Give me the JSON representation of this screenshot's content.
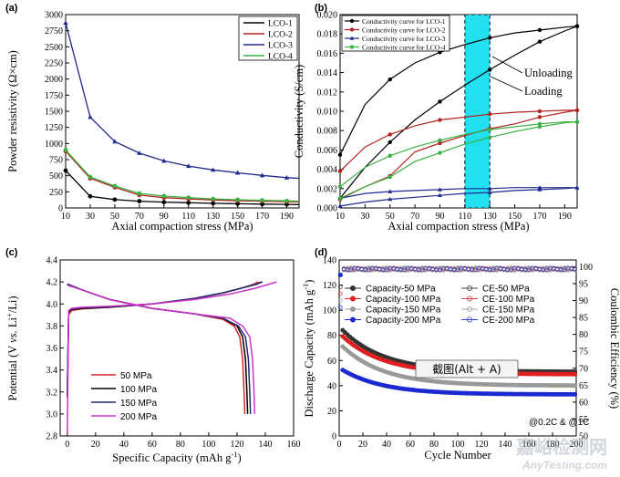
{
  "chart_data": [
    {
      "panel": "(a)",
      "type": "line",
      "xlabel": "Axial compaction stress (MPa)",
      "ylabel": "Powder resistivity (Ω×cm)",
      "xlim": [
        10,
        200
      ],
      "ylim": [
        0,
        3000
      ],
      "xticks": [
        10,
        30,
        50,
        70,
        90,
        110,
        130,
        150,
        170,
        190
      ],
      "yticks": [
        0,
        250,
        500,
        750,
        1000,
        1250,
        1500,
        1750,
        2000,
        2250,
        2500,
        2750,
        3000
      ],
      "x": [
        10,
        30,
        50,
        70,
        90,
        110,
        130,
        150,
        170,
        190,
        200
      ],
      "legend_position": "top-right",
      "series": [
        {
          "name": "LCO-1",
          "color": "#000000",
          "values": [
            580,
            180,
            130,
            105,
            90,
            80,
            72,
            65,
            60,
            55,
            52
          ]
        },
        {
          "name": "LCO-2",
          "color": "#b22222",
          "values": [
            880,
            460,
            320,
            200,
            160,
            140,
            125,
            112,
            105,
            98,
            95
          ]
        },
        {
          "name": "LCO-3",
          "color": "#1f2a8c",
          "values": [
            2870,
            1410,
            1030,
            850,
            730,
            650,
            590,
            545,
            505,
            470,
            460
          ]
        },
        {
          "name": "LCO-4",
          "color": "#3cb043",
          "values": [
            900,
            480,
            340,
            225,
            185,
            160,
            140,
            128,
            118,
            110,
            105
          ]
        }
      ]
    },
    {
      "panel": "(b)",
      "type": "line",
      "xlabel": "Axial compaction stress (MPa)",
      "ylabel": "Conductivity (S/cm)",
      "xlim": [
        10,
        200
      ],
      "ylim": [
        0,
        0.02
      ],
      "xticks": [
        10,
        30,
        50,
        70,
        90,
        110,
        130,
        150,
        170,
        190
      ],
      "xtick_labels": [
        "10",
        "30",
        "50",
        "70",
        "90",
        "110",
        "130",
        "150",
        "170",
        "190"
      ],
      "yticks": [
        0,
        0.002,
        0.004,
        0.006,
        0.008,
        0.01,
        0.012,
        0.014,
        0.016,
        0.018,
        0.02
      ],
      "ytick_labels": [
        "0.000",
        "0.002",
        "0.004",
        "0.006",
        "0.008",
        "0.010",
        "0.012",
        "0.014",
        "0.016",
        "0.018",
        "0.020"
      ],
      "legend_position": "top-left",
      "highlight_band": {
        "x_from": 110,
        "x_to": 130,
        "color": "#22e0f0"
      },
      "annotations": [
        "Unloading",
        "Loading"
      ],
      "series": [
        {
          "name": "Conductivity curve for LCO-1",
          "color": "#000000",
          "loading": {
            "x": [
              10,
              30,
              50,
              70,
              90,
              110,
              130,
              150,
              170,
              190,
              200
            ],
            "y": [
              0.001,
              0.0042,
              0.0068,
              0.0091,
              0.011,
              0.0127,
              0.0143,
              0.0158,
              0.0172,
              0.0183,
              0.0188
            ]
          },
          "unloading": {
            "x": [
              10,
              30,
              50,
              70,
              90,
              110,
              130,
              150,
              170,
              190,
              200
            ],
            "y": [
              0.0055,
              0.0107,
              0.0133,
              0.015,
              0.0161,
              0.0169,
              0.0176,
              0.0181,
              0.0184,
              0.0187,
              0.0188
            ]
          }
        },
        {
          "name": "Conductivity curve for LCO-2",
          "color": "#b22222",
          "loading": {
            "x": [
              10,
              30,
              50,
              70,
              90,
              110,
              130,
              150,
              170,
              190,
              200
            ],
            "y": [
              0.0009,
              0.0022,
              0.0033,
              0.0058,
              0.0067,
              0.0075,
              0.0082,
              0.0087,
              0.0094,
              0.0099,
              0.0101
            ]
          },
          "unloading": {
            "x": [
              10,
              30,
              50,
              70,
              90,
              110,
              130,
              150,
              170,
              190,
              200
            ],
            "y": [
              0.0038,
              0.0063,
              0.0076,
              0.0085,
              0.0091,
              0.0094,
              0.0097,
              0.0099,
              0.01,
              0.0101,
              0.0101
            ]
          }
        },
        {
          "name": "Conductivity curve for LCO-3",
          "color": "#1f2a8c",
          "loading": {
            "x": [
              10,
              30,
              50,
              70,
              90,
              110,
              130,
              150,
              170,
              190,
              200
            ],
            "y": [
              0.0002,
              0.0006,
              0.0009,
              0.0011,
              0.0013,
              0.0015,
              0.0016,
              0.0018,
              0.0019,
              0.002,
              0.0021
            ]
          },
          "unloading": {
            "x": [
              10,
              30,
              50,
              70,
              90,
              110,
              130,
              150,
              170,
              190,
              200
            ],
            "y": [
              0.001,
              0.0015,
              0.0017,
              0.0018,
              0.0019,
              0.002,
              0.002,
              0.0021,
              0.0021,
              0.0021,
              0.0021
            ]
          }
        },
        {
          "name": "Conductivity curve for LCO-4",
          "color": "#3cb043",
          "loading": {
            "x": [
              10,
              30,
              50,
              70,
              90,
              110,
              130,
              150,
              170,
              190,
              200
            ],
            "y": [
              0.001,
              0.0022,
              0.0032,
              0.0048,
              0.0057,
              0.0066,
              0.0073,
              0.0079,
              0.0084,
              0.0088,
              0.0089
            ]
          },
          "unloading": {
            "x": [
              10,
              30,
              50,
              70,
              90,
              110,
              130,
              150,
              170,
              190,
              200
            ],
            "y": [
              0.0022,
              0.0042,
              0.0054,
              0.0063,
              0.007,
              0.0076,
              0.0081,
              0.0084,
              0.0087,
              0.0089,
              0.0089
            ]
          }
        }
      ]
    },
    {
      "panel": "(c)",
      "type": "line",
      "xlabel": "Specific Capacity (mAh g",
      "xlabel_sup": "-1",
      "xlabel_end": ")",
      "ylabel_parts": [
        "Potential (V ",
        "vs.",
        " Li",
        "+",
        "/Li)"
      ],
      "xlim": [
        -5,
        160
      ],
      "ylim": [
        2.8,
        4.4
      ],
      "xticks": [
        0,
        20,
        40,
        60,
        80,
        100,
        120,
        140,
        160
      ],
      "yticks": [
        2.8,
        2.9,
        3.0,
        3.1,
        3.2,
        3.3,
        3.4,
        3.5,
        3.6,
        3.7,
        3.8,
        3.9,
        4.0,
        4.1,
        4.2,
        4.3,
        4.4
      ],
      "legend_position": "bottom-left",
      "series": [
        {
          "name": "50  MPa",
          "color": "#d62728",
          "charge": {
            "x": [
              0,
              1,
              3,
              10,
              30,
              60,
              90,
              110,
              125,
              132,
              135
            ],
            "y": [
              3.15,
              3.9,
              3.94,
              3.955,
              3.97,
              4.0,
              4.05,
              4.1,
              4.15,
              4.18,
              4.2
            ]
          },
          "discharge": {
            "x": [
              0,
              10,
              30,
              60,
              90,
              110,
              118,
              122,
              124,
              125,
              125.5
            ],
            "y": [
              4.18,
              4.13,
              4.04,
              3.96,
              3.91,
              3.86,
              3.8,
              3.7,
              3.5,
              3.2,
              3.0
            ]
          }
        },
        {
          "name": "100 MPa",
          "color": "#000000",
          "charge": {
            "x": [
              0,
              1,
              3,
              10,
              30,
              60,
              90,
              110,
              125,
              134,
              137
            ],
            "y": [
              3.17,
              3.92,
              3.95,
              3.96,
              3.97,
              4.0,
              4.05,
              4.1,
              4.15,
              4.18,
              4.2
            ]
          },
          "discharge": {
            "x": [
              0,
              10,
              30,
              60,
              90,
              110,
              120,
              124,
              126,
              127,
              127.5
            ],
            "y": [
              4.18,
              4.13,
              4.04,
              3.96,
              3.91,
              3.87,
              3.8,
              3.7,
              3.5,
              3.2,
              3.0
            ]
          }
        },
        {
          "name": "150 MPa",
          "color": "#1f2a6c",
          "charge": {
            "x": [
              0,
              1,
              3,
              10,
              30,
              60,
              90,
              110,
              125,
              134,
              138
            ],
            "y": [
              3.18,
              3.93,
              3.955,
              3.965,
              3.975,
              4.0,
              4.05,
              4.1,
              4.15,
              4.18,
              4.2
            ]
          },
          "discharge": {
            "x": [
              0,
              10,
              30,
              60,
              90,
              110,
              121,
              126,
              128,
              129,
              129.5
            ],
            "y": [
              4.18,
              4.13,
              4.04,
              3.96,
              3.91,
              3.87,
              3.8,
              3.7,
              3.5,
              3.2,
              3.0
            ]
          }
        },
        {
          "name": "200 MPa",
          "color": "#cc33cc",
          "charge": {
            "x": [
              0,
              1,
              3,
              10,
              30,
              60,
              90,
              115,
              132,
              143,
              148
            ],
            "y": [
              2.82,
              3.94,
              3.96,
              3.97,
              3.98,
              4.0,
              4.04,
              4.09,
              4.14,
              4.18,
              4.2
            ]
          },
          "discharge": {
            "x": [
              0,
              10,
              30,
              60,
              90,
              115,
              124,
              129,
              131,
              132,
              132.5
            ],
            "y": [
              4.17,
              4.13,
              4.04,
              3.96,
              3.91,
              3.87,
              3.8,
              3.7,
              3.5,
              3.2,
              3.0
            ]
          }
        }
      ]
    },
    {
      "panel": "(d)",
      "type": "scatter",
      "xlabel": "Cycle Number",
      "ylabel": "Discharge Capacity (mAh g",
      "ylabel_sup": "-1",
      "ylabel_end": ")",
      "y2label": "Coulombic Efficiency (%)",
      "xlim": [
        0,
        200
      ],
      "ylim": [
        0,
        140
      ],
      "y2lim": [
        50,
        102
      ],
      "xticks": [
        0,
        20,
        40,
        60,
        80,
        100,
        120,
        140,
        160,
        180,
        200
      ],
      "yticks": [
        0,
        20,
        40,
        60,
        80,
        100,
        120,
        140
      ],
      "y2ticks": [
        50,
        55,
        60,
        65,
        70,
        75,
        80,
        85,
        90,
        95,
        100
      ],
      "legend_position": "center",
      "rate_note": "@0.2C & @1C",
      "capacity_series": [
        {
          "name": "Capacity-50  MPa",
          "color": "#333333",
          "start": 85,
          "end": 51
        },
        {
          "name": "Capacity-100 MPa",
          "color": "#e02020",
          "start": 80,
          "end": 49
        },
        {
          "name": "Capacity-150 MPa",
          "color": "#999999",
          "start": 72,
          "end": 40
        },
        {
          "name": "Capacity-200 MPa",
          "color": "#1a2ad0",
          "start": 53,
          "end": 33
        }
      ],
      "ce_series": [
        {
          "name": "CE-50  MPa",
          "color": "#444444"
        },
        {
          "name": "CE-100 MPa",
          "color": "#d04040"
        },
        {
          "name": "CE-150 MPa",
          "color": "#aaaaaa"
        },
        {
          "name": "CE-200 MPa",
          "color": "#3344cc"
        }
      ],
      "ce_value": 99.6,
      "initial_capacity": 128,
      "overlay_label": "截图(Alt + A)"
    }
  ],
  "watermark": {
    "cn": "嘉峪检测网",
    "en": "AnyTesting.com"
  }
}
